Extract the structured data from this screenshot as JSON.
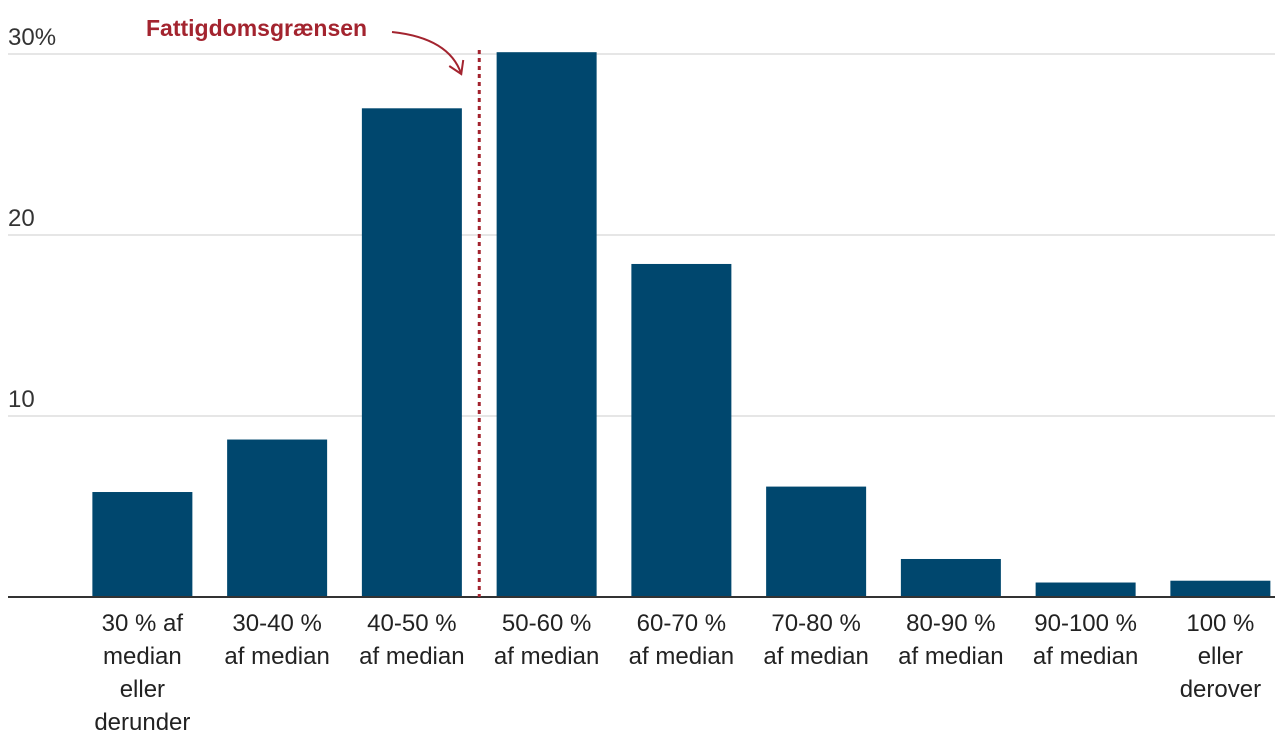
{
  "chart_data": {
    "type": "bar",
    "categories": [
      [
        "30 % af",
        "median",
        "eller",
        "derunder"
      ],
      [
        "30-40 %",
        "af median"
      ],
      [
        "40-50 %",
        "af median"
      ],
      [
        "50-60 %",
        "af median"
      ],
      [
        "60-70 %",
        "af median"
      ],
      [
        "70-80 %",
        "af median"
      ],
      [
        "80-90 %",
        "af median"
      ],
      [
        "90-100 %",
        "af median"
      ],
      [
        "100 %",
        "eller",
        "derover"
      ]
    ],
    "values": [
      5.8,
      8.7,
      27.0,
      30.1,
      18.4,
      6.1,
      2.1,
      0.8,
      0.9
    ],
    "ylim": [
      0,
      30
    ],
    "yticks": [
      10,
      20,
      30
    ],
    "ytick_labels": [
      "10",
      "20",
      "30%"
    ],
    "grid": true,
    "bar_color": "#00476e",
    "annotation": {
      "text": "Fattigdomsgrænsen",
      "color": "#a3242f",
      "marker_between_categories": [
        2,
        3
      ]
    }
  }
}
